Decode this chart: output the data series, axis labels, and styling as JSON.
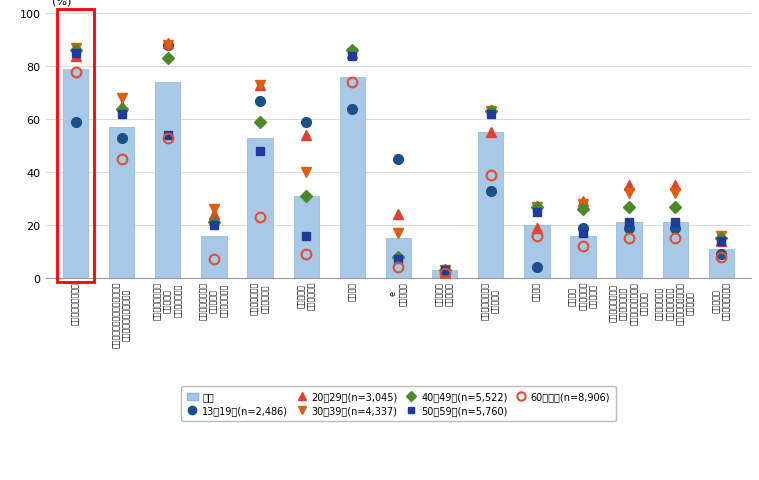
{
  "bar_values": [
    79,
    57,
    74,
    16,
    53,
    31,
    76,
    15,
    3,
    55,
    20,
    16,
    21,
    21,
    11
  ],
  "series_13_19": [
    59,
    53,
    88,
    21,
    67,
    59,
    64,
    45,
    2,
    33,
    4,
    19,
    19,
    19,
    9
  ],
  "series_20_29": [
    84,
    65,
    89,
    24,
    73,
    54,
    85,
    24,
    2,
    55,
    19,
    29,
    35,
    35,
    14
  ],
  "series_30_39": [
    87,
    68,
    88,
    26,
    73,
    40,
    85,
    17,
    3,
    63,
    27,
    28,
    32,
    32,
    16
  ],
  "series_40_49": [
    86,
    64,
    83,
    21,
    59,
    31,
    86,
    8,
    3,
    63,
    27,
    26,
    27,
    27,
    15
  ],
  "series_50_59": [
    85,
    62,
    54,
    20,
    48,
    16,
    84,
    7,
    3,
    62,
    25,
    17,
    21,
    21,
    14
  ],
  "series_60p": [
    78,
    45,
    53,
    7,
    23,
    9,
    74,
    4,
    2,
    39,
    16,
    12,
    15,
    15,
    8
  ],
  "bar_color": "#a8c8e8",
  "bar_edgecolor": "#90b4d0",
  "c_13_19": "#1a4f8a",
  "c_20_29": "#e04030",
  "c_30_39": "#d86010",
  "c_40_49": "#4a8a28",
  "c_50_59": "#1e3a9a",
  "c_60p": "#e05030",
  "ylabel": "(%)",
  "ylim": [
    0,
    100
  ],
  "yticks": [
    0,
    20,
    40,
    60,
    80,
    100
  ],
  "grid_color": "#cccccc",
  "background": "#ffffff",
  "cat_labels": [
    "電子メールの送受信",
    "ホームページやブログの閲覧、\n書き込み又は開設・更新",
    "ソーシャルネット\nワーキング\nサービスの利用",
    "業務目的でのオン\nライン会議\nシステムの利用",
    "動画投稿・共有\nサイトの利用",
    "オンライン\nゲームの利用",
    "情報検索",
    "e\nラーニング",
    "オンライン\n診療の利用",
    "商品・サービスの\n購入・取引",
    "金融取引",
    "デジタル\nコンテンツの\n購入・取引",
    "フリーマーケット\nオークション、\nフリマアプリによる\n購入・取引",
    "インターネット\nオークション、\nフリマアプリによる\n購入・取引",
    "電子政府・\n電子自治体の利用"
  ],
  "leg0": "全体",
  "leg1": "13～19歳(n=2,486)",
  "leg2": "20～29歳(n=3,045)",
  "leg3": "30～39歳(n=4,337)",
  "leg4": "40～49歳(n=5,522)",
  "leg5": "50～59歳(n=5,760)",
  "leg6": "60歳以上(n=8,906)"
}
